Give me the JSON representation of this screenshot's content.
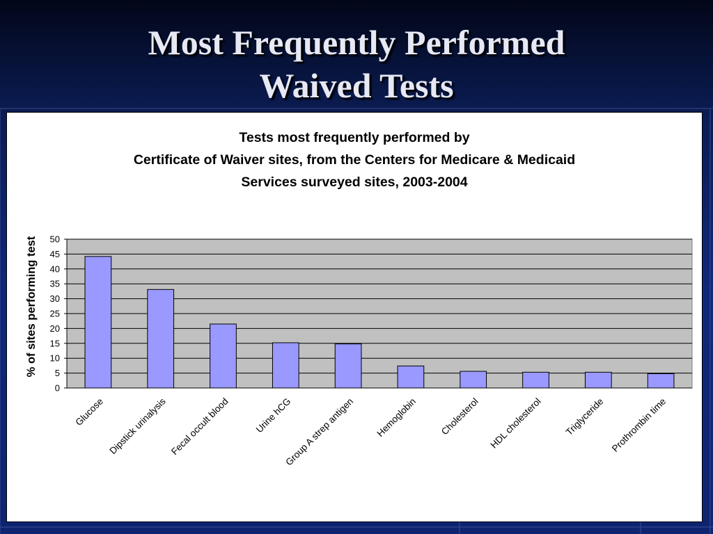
{
  "slide": {
    "title_line1": "Most Frequently Performed",
    "title_line2": "Waived Tests"
  },
  "colors": {
    "background": "#0e2470",
    "title_text": "#e6e8f4",
    "plot_area": "#c0c0c0",
    "bar_fill": "#9999ff",
    "bar_stroke": "#000000"
  },
  "chart_data": {
    "type": "bar",
    "title_lines": [
      "Tests most frequently performed by",
      "Certificate of Waiver sites, from the Centers for Medicare & Medicaid",
      "Services surveyed sites, 2003-2004"
    ],
    "xlabel": "",
    "ylabel": "% of sites performing test",
    "ylim": [
      0,
      50
    ],
    "yticks": [
      0,
      5,
      10,
      15,
      20,
      25,
      30,
      35,
      40,
      45,
      50
    ],
    "grid": true,
    "legend": "none",
    "categories": [
      "Glucose",
      "Dipstick urinalysis",
      "Fecal occult blood",
      "Urine hCG",
      "Group A strep antigen",
      "Hemoglobin",
      "Cholesterol",
      "HDL cholesterol",
      "Triglyceride",
      "Prothrombin time"
    ],
    "values": [
      44.2,
      33.1,
      21.5,
      15.2,
      14.8,
      7.4,
      5.6,
      5.3,
      5.3,
      4.8
    ]
  }
}
